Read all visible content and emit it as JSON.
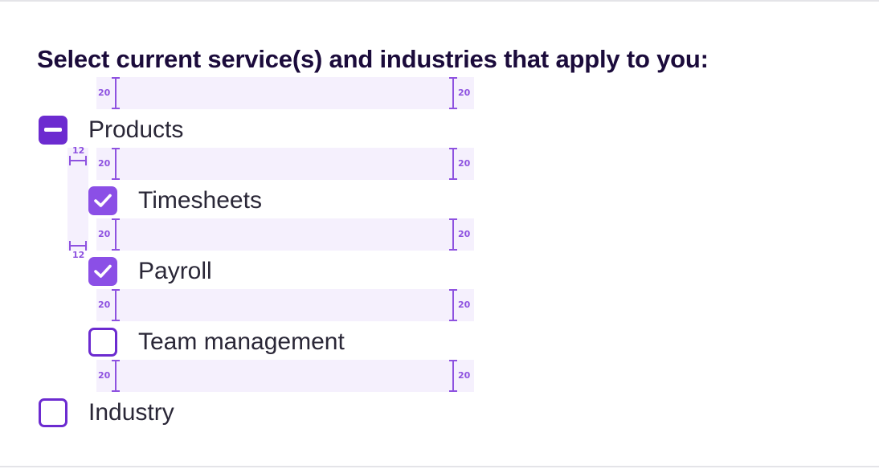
{
  "heading": "Select current service(s) and industries that apply to you:",
  "spacing_annotation": "20",
  "indent_annotation": "12",
  "parent_group": {
    "label": "Products",
    "state": "indeterminate",
    "icon": "minus-icon"
  },
  "children": [
    {
      "label": "Timesheets",
      "state": "checked",
      "icon": "check-icon"
    },
    {
      "label": "Payroll",
      "state": "checked",
      "icon": "check-icon"
    },
    {
      "label": "Team management",
      "state": "unchecked"
    }
  ],
  "second_group": {
    "label": "Industry",
    "state": "unchecked"
  },
  "colors": {
    "primary": "#6c2bd0",
    "checked_fill": "#8b4fe6",
    "annotation": "#8e52e0",
    "annotation_bg": "#f5f0fd",
    "heading_text": "#1b0b3b",
    "label_text": "#2a2737"
  }
}
